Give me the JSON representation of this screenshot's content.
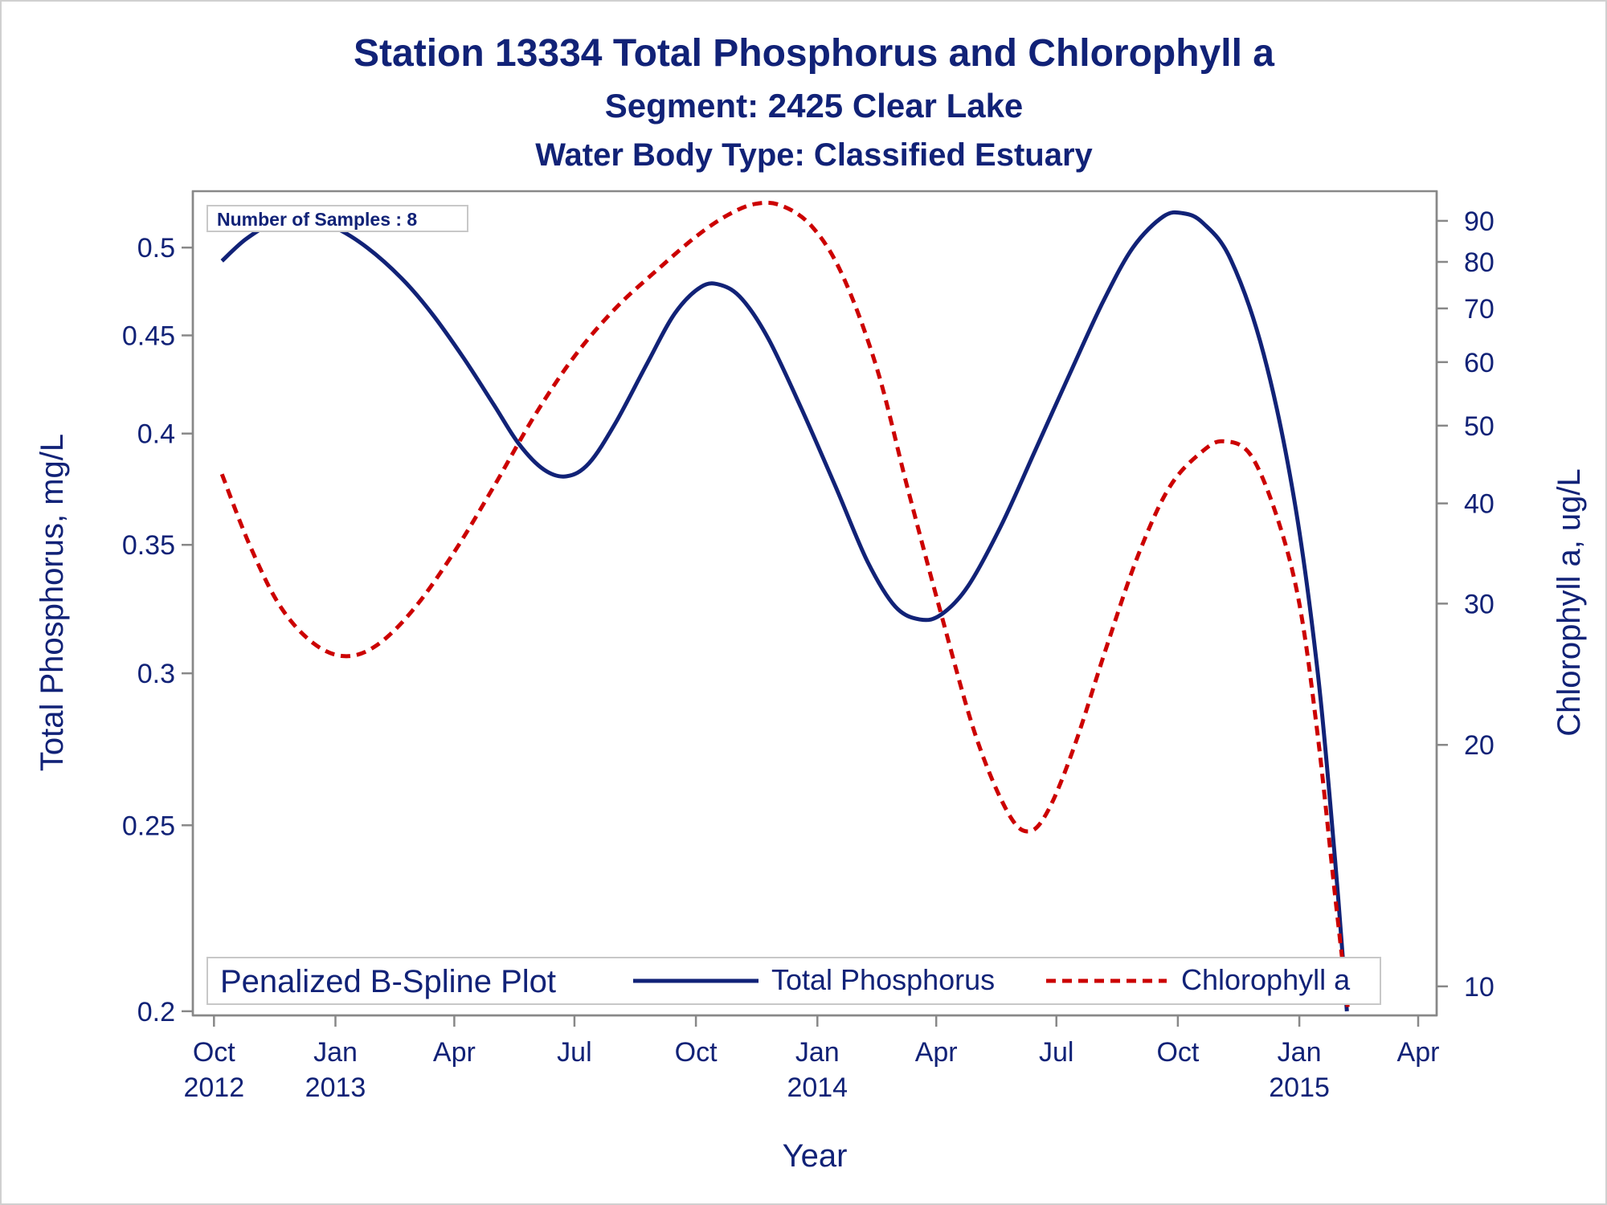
{
  "chart_data": {
    "type": "line",
    "title": "Station 13334  Total Phosphorus and Chlorophyll a",
    "subtitle": "Segment: 2425  Clear Lake",
    "subtitle2": "Water Body Type: Classified Estuary",
    "inset_label": "Number of Samples : 8",
    "xlabel": "Year",
    "ylabel": "Total Phosphorus, mg/L",
    "y2label": "Chlorophyll a, ug/L",
    "x_ticks": [
      {
        "date": "2012-10-01",
        "line1": "Oct",
        "line2": "2012"
      },
      {
        "date": "2013-01-01",
        "line1": "Jan",
        "line2": "2013"
      },
      {
        "date": "2013-04-01",
        "line1": "Apr",
        "line2": ""
      },
      {
        "date": "2013-07-01",
        "line1": "Jul",
        "line2": ""
      },
      {
        "date": "2013-10-01",
        "line1": "Oct",
        "line2": ""
      },
      {
        "date": "2014-01-01",
        "line1": "Jan",
        "line2": "2014"
      },
      {
        "date": "2014-04-01",
        "line1": "Apr",
        "line2": ""
      },
      {
        "date": "2014-07-01",
        "line1": "Jul",
        "line2": ""
      },
      {
        "date": "2014-10-01",
        "line1": "Oct",
        "line2": ""
      },
      {
        "date": "2015-01-01",
        "line1": "Jan",
        "line2": "2015"
      },
      {
        "date": "2015-04-01",
        "line1": "Apr",
        "line2": ""
      }
    ],
    "xlim": [
      "2012-09-15",
      "2015-04-15"
    ],
    "y_scale": "log",
    "y_ticks": [
      0.2,
      0.25,
      0.3,
      0.35,
      0.4,
      0.45,
      0.5
    ],
    "ylim": [
      0.199,
      0.535
    ],
    "y2_scale": "log",
    "y2_ticks": [
      10,
      20,
      30,
      40,
      50,
      60,
      70,
      80,
      90
    ],
    "y2lim": [
      9.2,
      98
    ],
    "legend": {
      "title": "Penalized B-Spline Plot",
      "placement": "bottom-inside",
      "entries": [
        "Total Phosphorus",
        "Chlorophyll a"
      ]
    },
    "series": [
      {
        "name": "Total Phosphorus",
        "axis": "left",
        "color": "#112277",
        "dash": "solid",
        "points": [
          {
            "date": "2012-10-07",
            "value": 0.492
          },
          {
            "date": "2012-10-25",
            "value": 0.505
          },
          {
            "date": "2012-11-15",
            "value": 0.515
          },
          {
            "date": "2012-12-08",
            "value": 0.518
          },
          {
            "date": "2013-01-01",
            "value": 0.512
          },
          {
            "date": "2013-01-25",
            "value": 0.5
          },
          {
            "date": "2013-02-20",
            "value": 0.482
          },
          {
            "date": "2013-03-15",
            "value": 0.462
          },
          {
            "date": "2013-04-08",
            "value": 0.438
          },
          {
            "date": "2013-05-01",
            "value": 0.414
          },
          {
            "date": "2013-05-20",
            "value": 0.395
          },
          {
            "date": "2013-06-08",
            "value": 0.383
          },
          {
            "date": "2013-06-25",
            "value": 0.38
          },
          {
            "date": "2013-07-12",
            "value": 0.386
          },
          {
            "date": "2013-08-01",
            "value": 0.405
          },
          {
            "date": "2013-08-25",
            "value": 0.435
          },
          {
            "date": "2013-09-15",
            "value": 0.462
          },
          {
            "date": "2013-10-05",
            "value": 0.477
          },
          {
            "date": "2013-10-20",
            "value": 0.478
          },
          {
            "date": "2013-11-05",
            "value": 0.47
          },
          {
            "date": "2013-11-25",
            "value": 0.448
          },
          {
            "date": "2013-12-20",
            "value": 0.412
          },
          {
            "date": "2014-01-15",
            "value": 0.375
          },
          {
            "date": "2014-02-08",
            "value": 0.343
          },
          {
            "date": "2014-03-01",
            "value": 0.325
          },
          {
            "date": "2014-03-20",
            "value": 0.32
          },
          {
            "date": "2014-04-05",
            "value": 0.322
          },
          {
            "date": "2014-04-25",
            "value": 0.333
          },
          {
            "date": "2014-05-20",
            "value": 0.358
          },
          {
            "date": "2014-06-15",
            "value": 0.392
          },
          {
            "date": "2014-07-10",
            "value": 0.428
          },
          {
            "date": "2014-08-05",
            "value": 0.468
          },
          {
            "date": "2014-08-28",
            "value": 0.5
          },
          {
            "date": "2014-09-20",
            "value": 0.519
          },
          {
            "date": "2014-10-05",
            "value": 0.521
          },
          {
            "date": "2014-10-20",
            "value": 0.515
          },
          {
            "date": "2014-11-10",
            "value": 0.493
          },
          {
            "date": "2014-12-05",
            "value": 0.44
          },
          {
            "date": "2014-12-28",
            "value": 0.37
          },
          {
            "date": "2015-01-15",
            "value": 0.3
          },
          {
            "date": "2015-01-28",
            "value": 0.24
          },
          {
            "date": "2015-02-06",
            "value": 0.2
          }
        ]
      },
      {
        "name": "Chlorophyll a",
        "axis": "right",
        "color": "#cc0000",
        "dash": "dashed",
        "points": [
          {
            "date": "2012-10-07",
            "value": 43.5
          },
          {
            "date": "2012-10-28",
            "value": 35.5
          },
          {
            "date": "2012-11-20",
            "value": 29.8
          },
          {
            "date": "2012-12-15",
            "value": 26.8
          },
          {
            "date": "2013-01-08",
            "value": 25.8
          },
          {
            "date": "2013-02-01",
            "value": 26.6
          },
          {
            "date": "2013-03-01",
            "value": 29.5
          },
          {
            "date": "2013-04-01",
            "value": 34.8
          },
          {
            "date": "2013-05-01",
            "value": 42.0
          },
          {
            "date": "2013-06-01",
            "value": 51.5
          },
          {
            "date": "2013-07-01",
            "value": 61.0
          },
          {
            "date": "2013-08-01",
            "value": 70.0
          },
          {
            "date": "2013-09-01",
            "value": 78.0
          },
          {
            "date": "2013-10-01",
            "value": 86.0
          },
          {
            "date": "2013-10-25",
            "value": 91.5
          },
          {
            "date": "2013-11-15",
            "value": 94.5
          },
          {
            "date": "2013-12-05",
            "value": 94.0
          },
          {
            "date": "2013-12-28",
            "value": 88.5
          },
          {
            "date": "2014-01-20",
            "value": 77.0
          },
          {
            "date": "2014-02-15",
            "value": 59.0
          },
          {
            "date": "2014-03-10",
            "value": 42.0
          },
          {
            "date": "2014-04-05",
            "value": 29.0
          },
          {
            "date": "2014-05-01",
            "value": 20.5
          },
          {
            "date": "2014-05-25",
            "value": 16.5
          },
          {
            "date": "2014-06-10",
            "value": 15.6
          },
          {
            "date": "2014-06-25",
            "value": 16.6
          },
          {
            "date": "2014-07-15",
            "value": 20.0
          },
          {
            "date": "2014-08-08",
            "value": 26.5
          },
          {
            "date": "2014-09-01",
            "value": 34.5
          },
          {
            "date": "2014-09-25",
            "value": 42.0
          },
          {
            "date": "2014-10-20",
            "value": 46.5
          },
          {
            "date": "2014-11-05",
            "value": 47.8
          },
          {
            "date": "2014-11-25",
            "value": 46.0
          },
          {
            "date": "2014-12-15",
            "value": 38.5
          },
          {
            "date": "2015-01-01",
            "value": 30.0
          },
          {
            "date": "2015-01-15",
            "value": 20.5
          },
          {
            "date": "2015-01-28",
            "value": 13.0
          },
          {
            "date": "2015-02-07",
            "value": 9.3
          }
        ]
      }
    ]
  }
}
